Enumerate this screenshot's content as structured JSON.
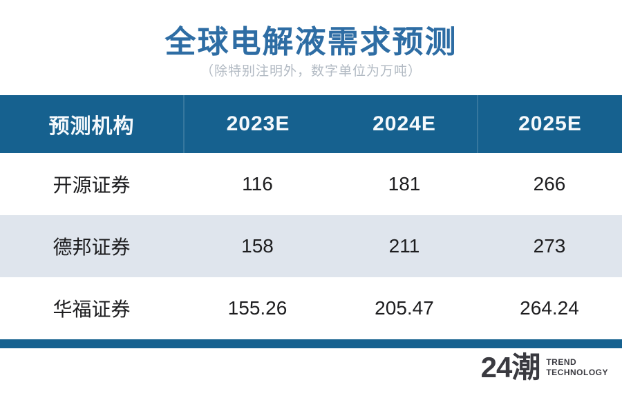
{
  "chart_data": {
    "type": "table",
    "title": "全球电解液需求预测",
    "subtitle": "（除特别注明外，数字单位为万吨）",
    "unit": "万吨",
    "columns": [
      "预测机构",
      "2023E",
      "2024E",
      "2025E"
    ],
    "rows": [
      [
        "开源证券",
        "116",
        "181",
        "266"
      ],
      [
        "德邦证券",
        "158",
        "211",
        "273"
      ],
      [
        "华福证券",
        "155.26",
        "205.47",
        "264.24"
      ]
    ]
  },
  "footer": {
    "logo_text": "24潮",
    "brand_line1": "TREND",
    "brand_line2": "TECHNOLOGY"
  },
  "colors": {
    "title_blue": "#2e6da4",
    "subtitle_gray": "#b2bac3",
    "header_bg": "#16618f",
    "header_text": "#f5f9fc",
    "row_alt_bg": "#dfe5ed",
    "body_text": "#1d1d1f",
    "bottom_bar": "#16618f",
    "brand_dark": "#3a3a40"
  }
}
